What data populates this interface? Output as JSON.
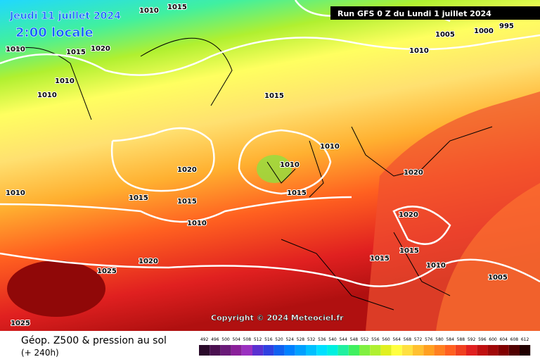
{
  "header": {
    "date": "Jeudi 11 juillet 2024",
    "time": "2:00 locale",
    "run": "Run GFS 0 Z du Lundi 1 juillet 2024"
  },
  "map": {
    "isobar_labels": [
      "1010",
      "1015",
      "1010",
      "1015",
      "1020",
      "1010",
      "1010",
      "1015",
      "1005",
      "1000",
      "995",
      "1010",
      "1010",
      "1010",
      "1020",
      "1020",
      "1010",
      "1015",
      "1015",
      "1015",
      "1010",
      "1020",
      "1015",
      "1015",
      "1020",
      "1010",
      "1025",
      "1005",
      "1025"
    ],
    "copyright": "Copyright © 2024 Meteociel.fr"
  },
  "legend": {
    "title": "Géop. Z500 & pression au sol",
    "lead": "(+ 240h)",
    "scale": [
      492,
      496,
      500,
      504,
      508,
      512,
      516,
      520,
      524,
      528,
      532,
      536,
      540,
      544,
      548,
      552,
      556,
      560,
      564,
      568,
      572,
      576,
      580,
      584,
      588,
      592,
      596,
      600,
      604,
      608,
      612
    ],
    "colors": [
      "#2a0a2a",
      "#4a1050",
      "#6a1a78",
      "#8a209a",
      "#9a30c0",
      "#5a30d0",
      "#3040e0",
      "#1060f0",
      "#0080ff",
      "#00a0ff",
      "#00c0ff",
      "#00e0ff",
      "#00f0e0",
      "#20f0a0",
      "#40f060",
      "#80f040",
      "#b0f030",
      "#e0f020",
      "#ffff40",
      "#ffe040",
      "#ffc030",
      "#ffa020",
      "#ff8020",
      "#ff6020",
      "#f04020",
      "#e02020",
      "#c01010",
      "#a00808",
      "#800000",
      "#500000",
      "#200000"
    ]
  }
}
